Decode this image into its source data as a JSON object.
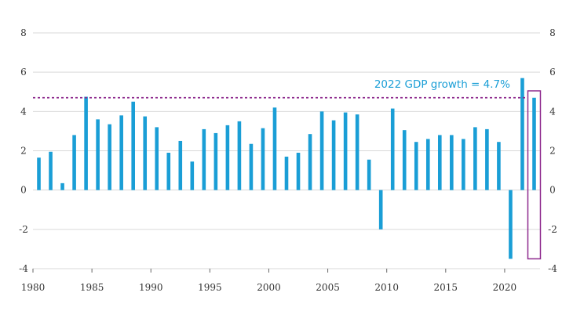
{
  "chart_data": {
    "type": "bar",
    "title": "",
    "xlabel": "",
    "ylabel": "",
    "x": [
      1980,
      1981,
      1982,
      1983,
      1984,
      1985,
      1986,
      1987,
      1988,
      1989,
      1990,
      1991,
      1992,
      1993,
      1994,
      1995,
      1996,
      1997,
      1998,
      1999,
      2000,
      2001,
      2002,
      2003,
      2004,
      2005,
      2006,
      2007,
      2008,
      2009,
      2010,
      2011,
      2012,
      2013,
      2014,
      2015,
      2016,
      2017,
      2018,
      2019,
      2020,
      2021,
      2022
    ],
    "values": [
      1.65,
      1.95,
      0.35,
      2.8,
      4.75,
      3.6,
      3.35,
      3.8,
      4.5,
      3.75,
      3.2,
      1.9,
      2.5,
      1.45,
      3.1,
      2.9,
      3.3,
      3.5,
      2.35,
      3.15,
      4.2,
      1.7,
      1.9,
      2.85,
      4.0,
      3.55,
      3.95,
      3.85,
      1.55,
      -2.0,
      4.15,
      3.05,
      2.45,
      2.6,
      2.8,
      2.8,
      2.6,
      3.2,
      3.1,
      2.45,
      -3.5,
      5.7,
      4.7
    ],
    "xticks": [
      "1980",
      "1985",
      "1990",
      "1995",
      "2000",
      "2005",
      "2010",
      "2015",
      "2020"
    ],
    "yticks_left": [
      "8",
      "6",
      "4",
      "2",
      "0",
      "-2",
      "-4"
    ],
    "yticks_right": [
      "8",
      "6",
      "4",
      "2",
      "0",
      "-2",
      "-4"
    ],
    "ylim": [
      -4,
      8
    ],
    "xlim": [
      1980,
      2023
    ],
    "grid": "horizontal",
    "reference_line": {
      "value": 4.7,
      "style": "dotted"
    },
    "annotation": {
      "text": "2022 GDP growth = 4.7%",
      "highlight_year": 2022
    },
    "colors": {
      "bar": "#1a9ed6",
      "reference": "#8e2a8e",
      "highlight": "#8e2a8e",
      "annotation_text": "#1a9ed6",
      "grid": "#d9d9d9"
    }
  }
}
